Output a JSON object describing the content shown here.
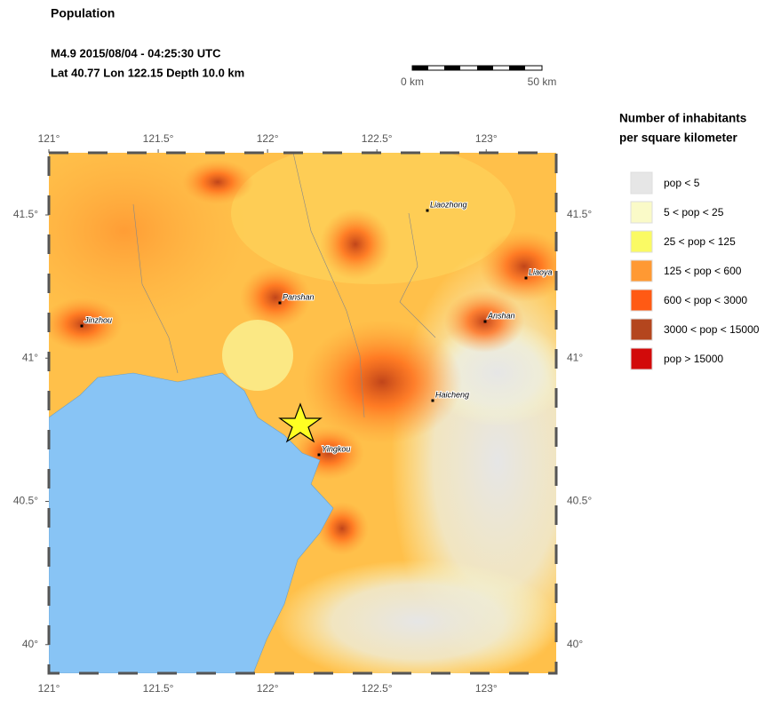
{
  "header": {
    "title": "Population",
    "event_line": "M4.9  2015/08/04 - 04:25:30 UTC",
    "location_line": "Lat 40.77    Lon 122.15     Depth  10.0 km"
  },
  "scale_bar": {
    "start_label": "0 km",
    "end_label": "50 km"
  },
  "map": {
    "xlim": [
      121,
      123.32
    ],
    "ylim": [
      39.9,
      41.717
    ],
    "xticks": [
      {
        "value": 121,
        "label": "121°"
      },
      {
        "value": 121.5,
        "label": "121.5°"
      },
      {
        "value": 122,
        "label": "122°"
      },
      {
        "value": 122.5,
        "label": "122.5°"
      },
      {
        "value": 123,
        "label": "123°"
      }
    ],
    "yticks": [
      {
        "value": 40,
        "label": "40°"
      },
      {
        "value": 40.5,
        "label": "40.5°"
      },
      {
        "value": 41,
        "label": "41°"
      },
      {
        "value": 41.5,
        "label": "41.5°"
      }
    ],
    "cities": [
      "Jinzhou",
      "Panshan",
      "Liaozhong",
      "Liaoya",
      "Anshan",
      "Haicheng",
      "Yingkou"
    ]
  },
  "legend": {
    "title_lines": [
      "Number of inhabitants",
      "per square kilometer"
    ],
    "items": [
      {
        "label": "pop < 5",
        "color": "#e6e6e6"
      },
      {
        "label": "5 < pop < 25",
        "color": "#fafac8"
      },
      {
        "label": "25 < pop < 125",
        "color": "#fafa64"
      },
      {
        "label": "125 < pop < 600",
        "color": "#ff9933"
      },
      {
        "label": "600 < pop < 3000",
        "color": "#ff5a14"
      },
      {
        "label": "3000 < pop < 15000",
        "color": "#b4461e"
      },
      {
        "label": "pop > 15000",
        "color": "#d20a0a"
      }
    ]
  }
}
